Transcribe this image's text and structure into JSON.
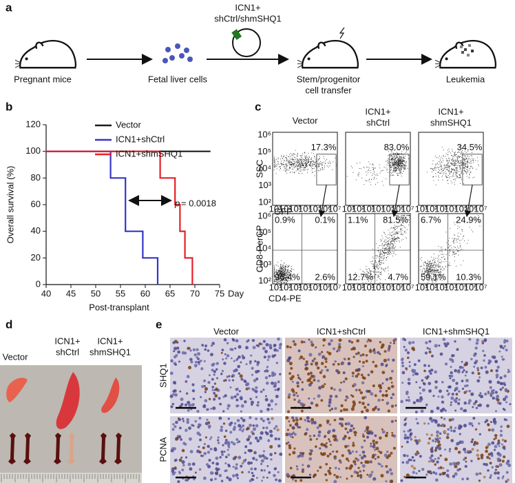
{
  "panel_labels": [
    "a",
    "b",
    "c",
    "d",
    "e"
  ],
  "workflow": {
    "pregnant": "Pregnant mice",
    "cells": "Fetal liver cells",
    "plasmid": [
      "ICN1+",
      "shCtrl/shmSHQ1"
    ],
    "transfer": [
      "Stem/progenitor",
      "cell transfer"
    ],
    "leukemia": "Leukemia"
  },
  "chart_data": {
    "type": "step",
    "y_label": "Overall survival (%)",
    "x_label": "Post-transplant",
    "x_unit": "Day",
    "xlim": [
      40,
      75
    ],
    "xticks": [
      40,
      45,
      50,
      55,
      60,
      65,
      70,
      75
    ],
    "ylim": [
      0,
      120
    ],
    "yticks": [
      0,
      20,
      40,
      60,
      80,
      100,
      120
    ],
    "legend": "top",
    "series": [
      {
        "name": "Vector",
        "color": "#1a1a1a",
        "x": [
          40,
          73
        ],
        "values": [
          100,
          100
        ]
      },
      {
        "name": "ICN1+shCtrl",
        "color": "#3434c8",
        "x": [
          40,
          53,
          56,
          59.5,
          62.5
        ],
        "values": [
          100,
          80,
          40,
          20,
          0
        ]
      },
      {
        "name": "ICN1+shmSHQ1",
        "color": "#e41f26",
        "x": [
          40,
          63,
          66,
          67,
          68,
          69.5
        ],
        "values": [
          100,
          80,
          60,
          40,
          20,
          0
        ]
      }
    ],
    "annotation": {
      "symbol": "p",
      "text": "= 0.0018"
    }
  },
  "flow": {
    "columns": [
      [
        "Vector"
      ],
      [
        "ICN1+",
        "shCtrl"
      ],
      [
        "ICN1+",
        "shmSHQ1"
      ]
    ],
    "top_axis": {
      "y": "SSC",
      "x": "GFP"
    },
    "bottom_axis": {
      "y": "CD8-PerCP",
      "x": "CD4-PE"
    },
    "x_ticks": [
      "10¹",
      "10²",
      "10³",
      "10⁴",
      "10⁵",
      "10⁶",
      "10⁷"
    ],
    "y_ticks": [
      "10²",
      "10³",
      "10⁴",
      "10⁵",
      "10⁶"
    ],
    "gates": [
      "17.3%",
      "83.0%",
      "34.5%"
    ],
    "quadrants": [
      [
        "0.9%",
        "0.1%",
        "96.4%",
        "2.6%"
      ],
      [
        "1.1%",
        "81.5%",
        "12.7%",
        "4.7%"
      ],
      [
        "6.7%",
        "24.9%",
        "59.1%",
        "10.3%"
      ]
    ]
  },
  "spleen": {
    "columns": [
      [
        "Vector"
      ],
      [
        "ICN1+",
        "shCtrl"
      ],
      [
        "ICN1+",
        "shmSHQ1"
      ]
    ]
  },
  "ihc": {
    "columns": [
      "Vector",
      "ICN1+shCtrl",
      "ICN1+shmSHQ1"
    ],
    "rows": [
      "SHQ1",
      "PCNA"
    ]
  }
}
